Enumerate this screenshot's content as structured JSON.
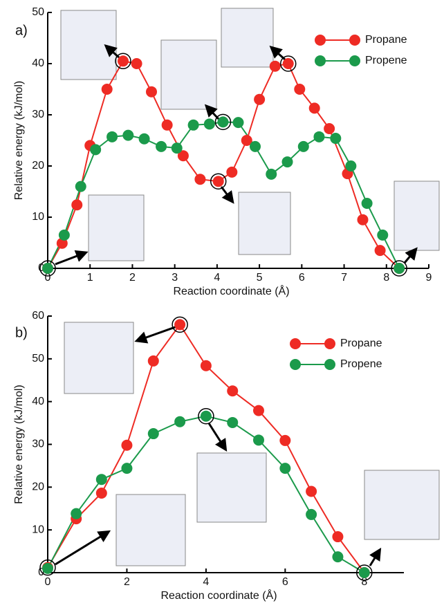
{
  "chart_data": [
    {
      "type": "line",
      "panel_label": "a)",
      "x_label": "Reaction coordinate (Å)",
      "y_label": "Relative energy (kJ/mol)",
      "xlim": [
        0,
        9
      ],
      "xticks": [
        0,
        1,
        2,
        3,
        4,
        5,
        6,
        7,
        8,
        9
      ],
      "ylim": [
        0,
        50
      ],
      "yticks": [
        0,
        10,
        20,
        30,
        40,
        50
      ],
      "legend": "upper right",
      "series": [
        {
          "name": "Propane",
          "color": "#ee2b24",
          "x": [
            0,
            0.34,
            0.69,
            1.0,
            1.4,
            1.78,
            2.1,
            2.45,
            2.82,
            3.2,
            3.6,
            4.03,
            4.35,
            4.7,
            5.0,
            5.37,
            5.68,
            5.95,
            6.3,
            6.65,
            7.08,
            7.44,
            7.85,
            8.3
          ],
          "values": [
            0,
            4.9,
            12.4,
            24,
            35,
            40.5,
            40,
            34.5,
            28,
            22,
            17.4,
            17,
            18.8,
            25,
            33,
            39.5,
            40,
            35,
            31.3,
            27.3,
            18.5,
            9.5,
            3.5,
            0
          ]
        },
        {
          "name": "Propene",
          "color": "#1b9a4b",
          "x": [
            0,
            0.39,
            0.78,
            1.13,
            1.52,
            1.9,
            2.28,
            2.68,
            3.05,
            3.44,
            3.82,
            4.14,
            4.5,
            4.9,
            5.28,
            5.66,
            6.04,
            6.41,
            6.8,
            7.16,
            7.54,
            7.91,
            8.3
          ],
          "values": [
            0,
            6.5,
            16,
            23.2,
            25.7,
            26,
            25.3,
            23.8,
            23.5,
            28,
            28.2,
            28.6,
            28.5,
            23.8,
            18.4,
            20.8,
            23.8,
            25.7,
            25.4,
            20,
            12.7,
            6.5,
            0
          ]
        }
      ]
    },
    {
      "type": "line",
      "panel_label": "b)",
      "x_label": "Reaction coordinate (Å)",
      "y_label": "Relative energy (kJ/mol)",
      "xlim": [
        0,
        9
      ],
      "xticks": [
        0,
        2,
        4,
        6,
        8
      ],
      "ylim": [
        0,
        60
      ],
      "yticks": [
        0,
        10,
        20,
        30,
        40,
        50,
        60
      ],
      "legend": "upper right",
      "series": [
        {
          "name": "Propane",
          "color": "#ee2b24",
          "x": [
            0,
            0.72,
            1.36,
            2.0,
            2.67,
            3.34,
            4.0,
            4.67,
            5.33,
            6.0,
            6.66,
            7.33,
            8.0
          ],
          "values": [
            1.2,
            12.6,
            18.6,
            29.8,
            49.5,
            58,
            48.4,
            42.5,
            37.9,
            30.9,
            19,
            8.4,
            0
          ]
        },
        {
          "name": "Propene",
          "color": "#1b9a4b",
          "x": [
            0,
            0.72,
            1.36,
            2.0,
            2.67,
            3.34,
            4.0,
            4.67,
            5.33,
            6.0,
            6.66,
            7.33,
            8.0
          ],
          "values": [
            1,
            13.8,
            21.8,
            24.4,
            32.5,
            35.3,
            36.6,
            35.1,
            31,
            24.4,
            13.6,
            3.7,
            0
          ]
        }
      ]
    }
  ]
}
